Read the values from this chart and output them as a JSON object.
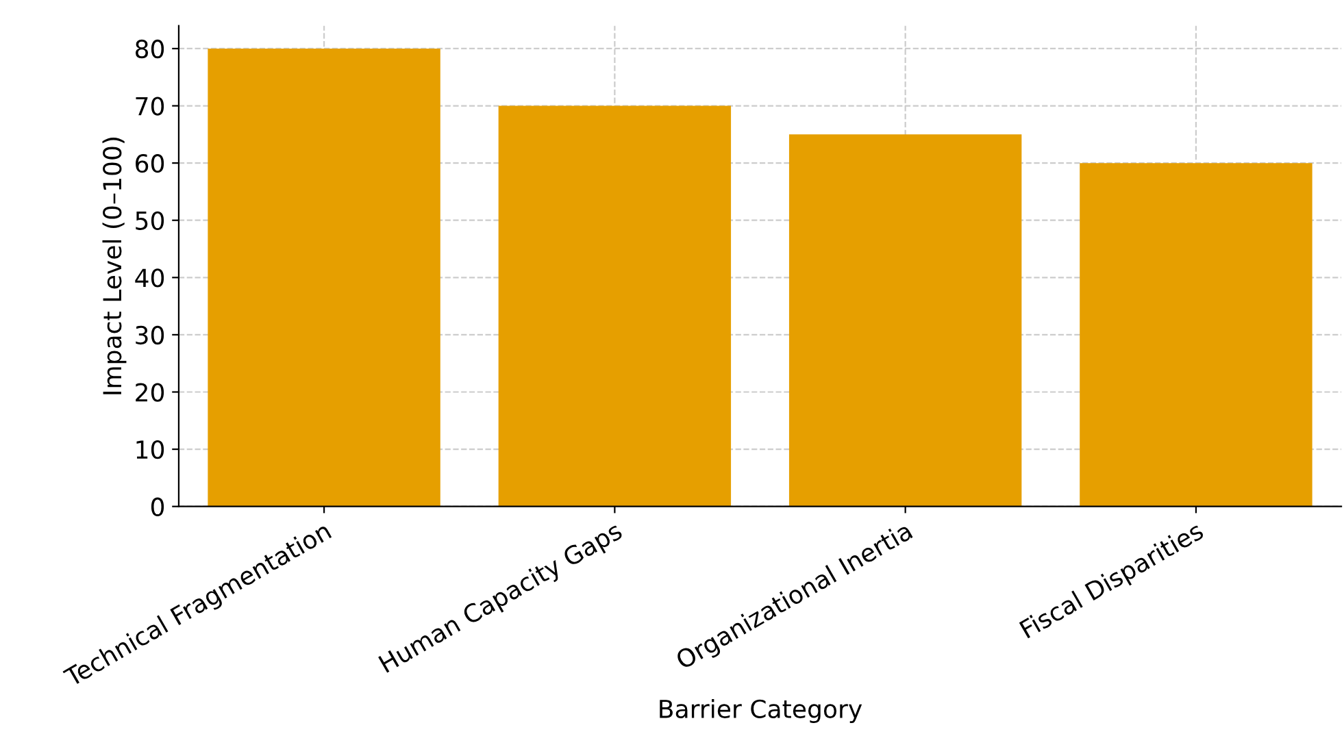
{
  "chart_data": {
    "type": "bar",
    "categories": [
      "Technical Fragmentation",
      "Human Capacity Gaps",
      "Organizational Inertia",
      "Fiscal Disparities"
    ],
    "values": [
      80,
      70,
      65,
      60
    ],
    "color": "#e69f00",
    "xlabel": "Barrier Category",
    "ylabel": "Impact Level (0–100)",
    "ylim": [
      0,
      84
    ],
    "yticks": [
      0,
      10,
      20,
      30,
      40,
      50,
      60,
      70,
      80
    ],
    "grid": true,
    "line_style": "dashed"
  }
}
